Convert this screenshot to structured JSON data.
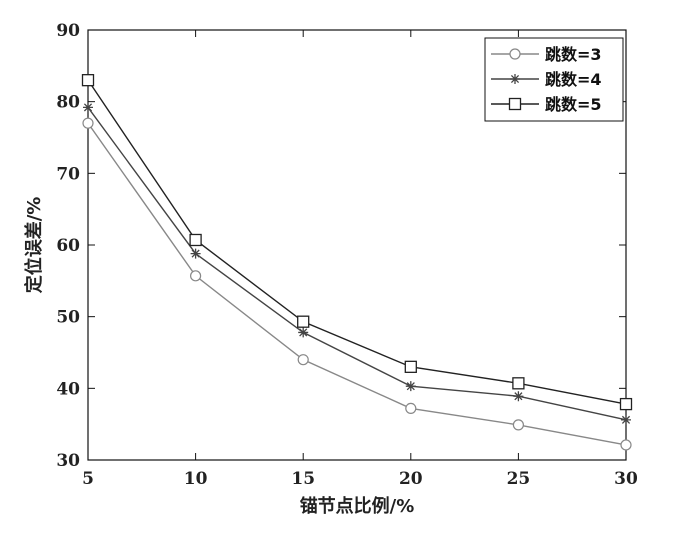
{
  "chart_data": {
    "type": "line",
    "xlabel": "锚节点比例/%",
    "ylabel": "定位误差/%",
    "x": [
      5,
      10,
      15,
      20,
      25,
      30
    ],
    "xticks": [
      "5",
      "10",
      "15",
      "20",
      "25",
      "30"
    ],
    "yticks": [
      "30",
      "40",
      "50",
      "60",
      "70",
      "80",
      "90"
    ],
    "xlim": [
      5,
      30
    ],
    "ylim": [
      30,
      90
    ],
    "grid": false,
    "legend_position": "top-right",
    "series": [
      {
        "name": "跳数=3",
        "marker": "circle",
        "color": "#888888",
        "values": [
          77.0,
          55.7,
          44.0,
          37.2,
          34.9,
          32.1
        ]
      },
      {
        "name": "跳数=4",
        "marker": "asterisk",
        "color": "#444444",
        "values": [
          79.2,
          58.8,
          47.8,
          40.3,
          38.9,
          35.6
        ]
      },
      {
        "name": "跳数=5",
        "marker": "square",
        "color": "#222222",
        "values": [
          83.0,
          60.7,
          49.3,
          43.0,
          40.7,
          37.8
        ]
      }
    ]
  }
}
